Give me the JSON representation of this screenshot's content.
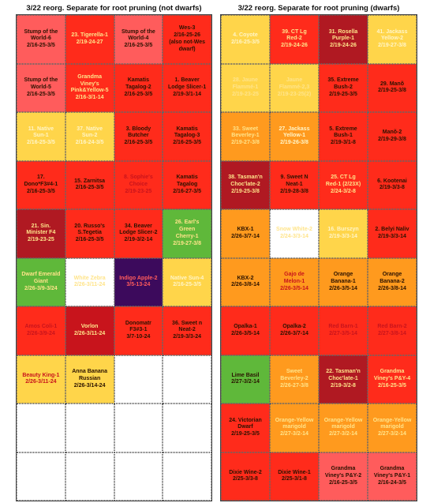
{
  "colors": {
    "R": "#ff2b1b",
    "DR": "#c8141c",
    "P": "#ff5c5c",
    "Y": "#ffd54a",
    "O": "#ff9a1e",
    "G": "#5fb83a",
    "M": "#b01922",
    "PU": "#3c0a5c",
    "W": "#ffffff",
    "TD": "#2a1200",
    "TL": "#fff5c8",
    "TY": "#ffe48a",
    "TR": "#c8141c"
  },
  "sheets": [
    {
      "title": "3/22 reorg. Separate for root pruning  (not dwarfs)",
      "cells": [
        {
          "text": "Stump of the\nWorld-6\n2/16-25-3/5",
          "bg": "P",
          "fg": "TD"
        },
        {
          "text": "23. Tigerella-1\n2/19-24-27",
          "bg": "R",
          "fg": "TY"
        },
        {
          "text": "Stump of the\nWorld-4\n2/16-25-3/5",
          "bg": "P",
          "fg": "TD"
        },
        {
          "text": "Wes-3\n2/16-25-26\n(also not-Wes\ndwarf)",
          "bg": "R",
          "fg": "TD"
        },
        {
          "text": "Stump of the\nWorld-5\n2/16-25-3/5",
          "bg": "P",
          "fg": "TD"
        },
        {
          "text": "Grandma\nViney's\nPink&Yellow-5\n2/16-3/1-14",
          "bg": "R",
          "fg": "TY"
        },
        {
          "text": "Kamatis\nTagalog-2\n2/16-25-3/5",
          "bg": "R",
          "fg": "TD"
        },
        {
          "text": "1. Beaver\nLodge Slicer-1\n2/19-3/1-14",
          "bg": "R",
          "fg": "TD"
        },
        {
          "text": "11. Native\nSun-1\n2/16-25-3/5",
          "bg": "Y",
          "fg": "TL"
        },
        {
          "text": "37. Native\nSun-2\n2/16-24-3/5",
          "bg": "Y",
          "fg": "TL"
        },
        {
          "text": "3. Bloody\nButcher\n2/16-25-3/5",
          "bg": "R",
          "fg": "TD"
        },
        {
          "text": "Kamatis\nTagalog-3\n2/16-25-3/5",
          "bg": "R",
          "fg": "TD"
        },
        {
          "text": "17.\nDono*F3#4-1\n2/16-25-3/5",
          "bg": "R",
          "fg": "TD"
        },
        {
          "text": "15. Zarnitsa\n2/16-25-3/5",
          "bg": "R",
          "fg": "TD"
        },
        {
          "text": "8. Sophie's\nChoice\n2/19-23-25",
          "bg": "R",
          "fg": "TR"
        },
        {
          "text": "Kamatis\nTagalog\n2/16-27-3/5",
          "bg": "R",
          "fg": "TD"
        },
        {
          "text": "21. Sin.\nMinister F4\n2/19-23-25",
          "bg": "M",
          "fg": "TY"
        },
        {
          "text": "20. Russo's\nS.Tegetia\n2/16-25-3/5",
          "bg": "R",
          "fg": "TD"
        },
        {
          "text": "34. Beaver\nLodge Slicer-2\n2/19-3/2-14",
          "bg": "R",
          "fg": "TD"
        },
        {
          "text": "26. Earl's\nGreen\nCherry-1\n2/19-27-3/8",
          "bg": "G",
          "fg": "TY"
        },
        {
          "text": "Dwarf Emerald\nGiant\n2/26-3/9-3/24",
          "bg": "G",
          "fg": "TY"
        },
        {
          "text": "White Zebra\n2/26-3/11-24",
          "bg": "W",
          "fg": "TY"
        },
        {
          "text": "Indigo Apple-2\n3/5-13-24",
          "bg": "PU",
          "fg": "P"
        },
        {
          "text": "Native Sun-4\n2/16-25-3/5",
          "bg": "Y",
          "fg": "TL"
        },
        {
          "text": "Amos Coli-1\n2/26-3/9-24",
          "bg": "R",
          "fg": "TR"
        },
        {
          "text": "Vorlon\n2/26-3/11-24",
          "bg": "DR",
          "fg": "TY"
        },
        {
          "text": "Donomatr\nF3#3-1\n3/7-10-24",
          "bg": "R",
          "fg": "TD"
        },
        {
          "text": "36. Sweet n\nNeat-2\n2/19-3/3-24",
          "bg": "R",
          "fg": "TD"
        },
        {
          "text": "Beauty King-1\n2/26-3/11-24",
          "bg": "Y",
          "fg": "TR"
        },
        {
          "text": "Anna Banana\nRussian\n2/26-3/14-24",
          "bg": "Y",
          "fg": "TD"
        },
        {
          "text": "",
          "bg": "W",
          "fg": "TD"
        },
        {
          "text": "",
          "bg": "W",
          "fg": "TD"
        },
        {
          "text": "",
          "bg": "W",
          "fg": "TD"
        },
        {
          "text": "",
          "bg": "W",
          "fg": "TD"
        },
        {
          "text": "",
          "bg": "W",
          "fg": "TD"
        },
        {
          "text": "",
          "bg": "W",
          "fg": "TD"
        },
        {
          "text": "",
          "bg": "W",
          "fg": "TD"
        },
        {
          "text": "",
          "bg": "W",
          "fg": "TD"
        },
        {
          "text": "",
          "bg": "W",
          "fg": "TD"
        },
        {
          "text": "",
          "bg": "W",
          "fg": "TD"
        }
      ]
    },
    {
      "title": "3/22 reorg. Separate for root pruning  (dwarfs)",
      "cells": [
        {
          "text": "4. Coyote\n2/16-25-3/5",
          "bg": "Y",
          "fg": "TL"
        },
        {
          "text": "39. CT Lg\nRed-2\n2/19-24-26",
          "bg": "R",
          "fg": "TY"
        },
        {
          "text": "31. Rosella\nPurple-1\n2/19-24-26",
          "bg": "M",
          "fg": "TY"
        },
        {
          "text": "41. Jackass\nYellow-2\n2/19-27-3/8",
          "bg": "Y",
          "fg": "TL"
        },
        {
          "text": "28. Jaune\nFlammé-1\n2/19-23-25",
          "bg": "Y",
          "fg": "TY"
        },
        {
          "text": "Jaune\nFlammé-2,3\n2/19-23-25(2)",
          "bg": "Y",
          "fg": "TY"
        },
        {
          "text": "35. Extreme\nBush-2\n2/19-25-3/5",
          "bg": "R",
          "fg": "TD"
        },
        {
          "text": "29. Manõ\n2/19-25-3/8",
          "bg": "R",
          "fg": "TD"
        },
        {
          "text": "33. Sweet\nBeverley-1\n2/19-27-3/8",
          "bg": "O",
          "fg": "TY"
        },
        {
          "text": "27. Jackass\nYellow-1\n2/19-26-3/8",
          "bg": "O",
          "fg": "TL"
        },
        {
          "text": "5. Extreme\nBush-1\n2/19-3/1-8",
          "bg": "R",
          "fg": "TD"
        },
        {
          "text": "Manõ-2\n2/19-29-3/8",
          "bg": "R",
          "fg": "TD"
        },
        {
          "text": "38. Tasman'n\nChoc'late-2\n2/19-25-3/8",
          "bg": "M",
          "fg": "TY"
        },
        {
          "text": "9. Sweet N\nNeat-1\n2/19-28-3/8",
          "bg": "R",
          "fg": "TD"
        },
        {
          "text": "25. CT Lg\nRed-1 (2/23X)\n2/24-3/2-8",
          "bg": "R",
          "fg": "TY"
        },
        {
          "text": "6. Kootenai\n2/19-3/3-8",
          "bg": "R",
          "fg": "TD"
        },
        {
          "text": "KBX-1\n2/26-3/7-14",
          "bg": "O",
          "fg": "TD"
        },
        {
          "text": "Snow White-2\n2/24-3/3-14",
          "bg": "W",
          "fg": "TY"
        },
        {
          "text": "16. Burszyn\n2/19-3/3-14",
          "bg": "Y",
          "fg": "TL"
        },
        {
          "text": "2. Belyi Naliv\n2/19-3/3-14",
          "bg": "R",
          "fg": "TD"
        },
        {
          "text": "KBX-2\n2/26-3/8-14",
          "bg": "O",
          "fg": "TD"
        },
        {
          "text": "Gajo de\nMelon-1\n2/26-3/5-14",
          "bg": "O",
          "fg": "TR"
        },
        {
          "text": "Orange\nBanana-1\n2/26-3/5-14",
          "bg": "O",
          "fg": "TD"
        },
        {
          "text": "Orange\nBanana-2\n2/26-3/8-14",
          "bg": "O",
          "fg": "TD"
        },
        {
          "text": "Opalka-1\n2/26-3/5-14",
          "bg": "R",
          "fg": "TD"
        },
        {
          "text": "Opalka-2\n2/26-3/7-14",
          "bg": "R",
          "fg": "TD"
        },
        {
          "text": "Red Barn-1\n2/27-3/5-14",
          "bg": "R",
          "fg": "TR"
        },
        {
          "text": "Red Barn-2\n2/27-3/8-14",
          "bg": "R",
          "fg": "TR"
        },
        {
          "text": "Lime Basil\n2/27-3/2-14",
          "bg": "G",
          "fg": "TD"
        },
        {
          "text": "Sweet\nBeverley-2\n2/26-27-3/8",
          "bg": "O",
          "fg": "TY"
        },
        {
          "text": "22. Tasman'n\nChoc'late-1\n2/19-3/2-8",
          "bg": "M",
          "fg": "TY"
        },
        {
          "text": "Grandma\nViney's P&Y-4\n2/16-25-3/5",
          "bg": "R",
          "fg": "TY"
        },
        {
          "text": "24. Victorian\nDwarf\n2/19-25-3/5",
          "bg": "R",
          "fg": "TD"
        },
        {
          "text": "Orange-Yellow\nmarigold\n2/27-3/2-14",
          "bg": "O",
          "fg": "TY"
        },
        {
          "text": "Orange-Yellow\nmarigold\n2/27-3/2-14",
          "bg": "O",
          "fg": "TY"
        },
        {
          "text": "Orange-Yellow\nmarigold\n2/27-3/2-14",
          "bg": "O",
          "fg": "TY"
        },
        {
          "text": "Dixie Wine-2\n2/25-3/3-8",
          "bg": "R",
          "fg": "TD"
        },
        {
          "text": "Dixie Wine-1\n2/25-3/1-8",
          "bg": "R",
          "fg": "TD"
        },
        {
          "text": "Grandma\nViney's P&Y-2\n2/16-25-3/5",
          "bg": "P",
          "fg": "TD"
        },
        {
          "text": "Grandma\nViney's P&Y-1\n2/16-24-3/5",
          "bg": "P",
          "fg": "TD"
        }
      ]
    }
  ]
}
